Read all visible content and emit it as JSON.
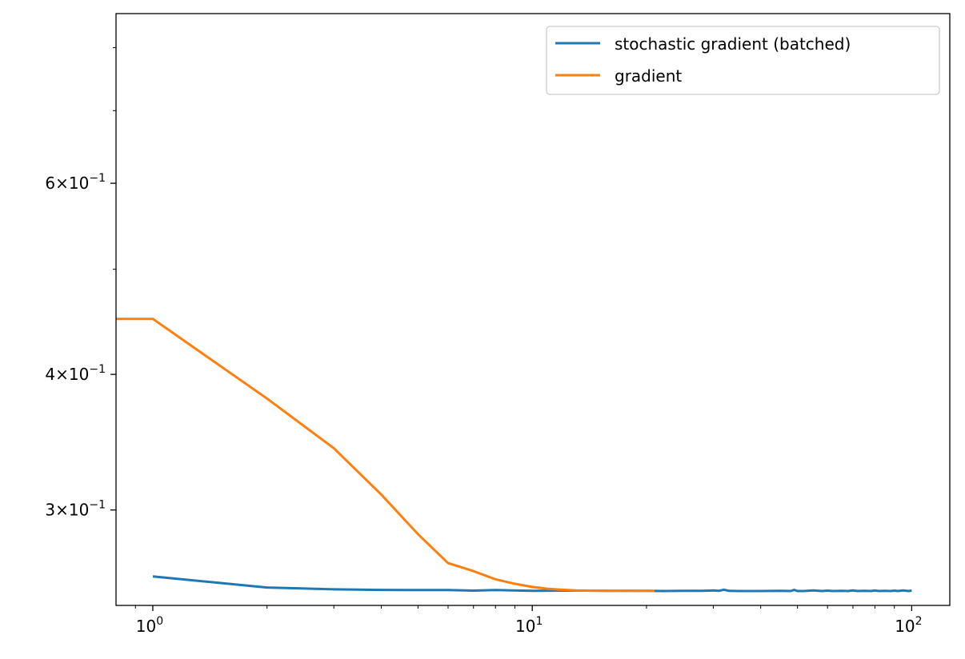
{
  "chart_data": {
    "type": "line",
    "title": "",
    "xlabel": "",
    "ylabel": "",
    "xscale": "log",
    "yscale": "log",
    "xlim": [
      0.8,
      126
    ],
    "ylim": [
      0.245,
      0.86
    ],
    "grid": false,
    "legend_position": "top-right",
    "x_ticks": [
      {
        "value": 1,
        "base": "10",
        "exp": "0"
      },
      {
        "value": 10,
        "base": "10",
        "exp": "1"
      },
      {
        "value": 100,
        "base": "10",
        "exp": "2"
      }
    ],
    "y_ticks": [
      {
        "value": 0.3,
        "mant": "3",
        "times": "×",
        "base": "10",
        "exp": "−1"
      },
      {
        "value": 0.4,
        "mant": "4",
        "times": "×",
        "base": "10",
        "exp": "−1"
      },
      {
        "value": 0.6,
        "mant": "6",
        "times": "×",
        "base": "10",
        "exp": "−1"
      }
    ],
    "y_minor_ticks": [
      0.5,
      0.7,
      0.8
    ],
    "series": [
      {
        "name": "stochastic gradient (batched)",
        "color": "#1f77b4",
        "x": [
          1,
          2,
          3,
          4,
          5,
          6,
          7,
          8,
          10,
          12,
          14,
          16,
          18,
          20,
          22,
          25,
          28,
          30,
          31,
          32,
          33,
          35,
          40,
          45,
          48,
          49,
          50,
          52,
          55,
          58,
          60,
          62,
          65,
          68,
          70,
          72,
          75,
          78,
          80,
          82,
          85,
          88,
          90,
          92,
          95,
          98,
          100
        ],
        "y": [
          0.2605,
          0.2545,
          0.2535,
          0.2532,
          0.2531,
          0.2531,
          0.2528,
          0.2531,
          0.2527,
          0.2528,
          0.2528,
          0.2527,
          0.2527,
          0.2527,
          0.2526,
          0.2527,
          0.2527,
          0.2529,
          0.2527,
          0.2533,
          0.2527,
          0.2526,
          0.2526,
          0.2527,
          0.2526,
          0.2532,
          0.2526,
          0.2526,
          0.2529,
          0.2526,
          0.2528,
          0.2526,
          0.2527,
          0.2526,
          0.2529,
          0.2526,
          0.2527,
          0.2526,
          0.2529,
          0.2526,
          0.2527,
          0.2526,
          0.2528,
          0.2526,
          0.2529,
          0.2526,
          0.2528
        ]
      },
      {
        "name": "gradient",
        "color": "#ff7f0e",
        "x": [
          0.8,
          1,
          2,
          3,
          4,
          5,
          6,
          7,
          8,
          9,
          10,
          11,
          12,
          13,
          14,
          15,
          16,
          17,
          18,
          19,
          20,
          21
        ],
        "y": [
          0.45,
          0.45,
          0.38,
          0.342,
          0.31,
          0.285,
          0.268,
          0.2635,
          0.259,
          0.2565,
          0.2548,
          0.2538,
          0.2533,
          0.2529,
          0.2528,
          0.2527,
          0.2527,
          0.2527,
          0.2528,
          0.2527,
          0.2527,
          0.2527
        ]
      }
    ]
  }
}
